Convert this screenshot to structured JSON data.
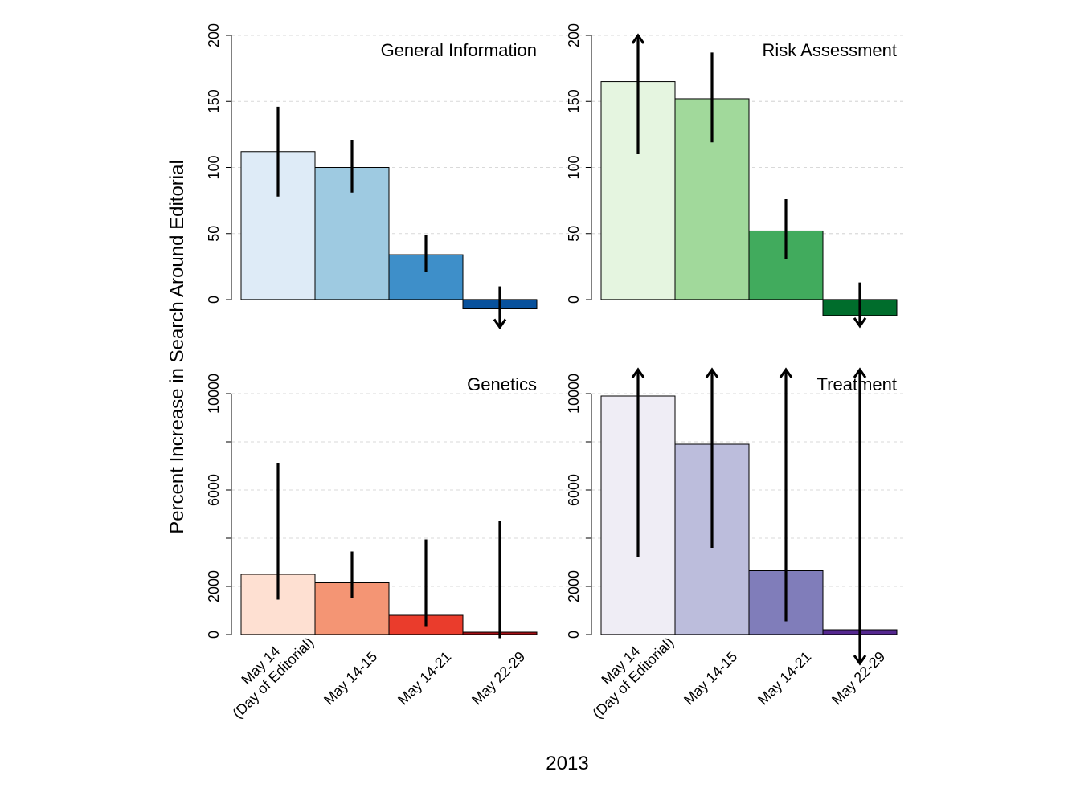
{
  "figure": {
    "ylabel": "Percent Increase in Search Around Editorial",
    "xlabel": "2013",
    "categories": [
      [
        "May 14",
        "(Day of Editorial)"
      ],
      [
        "May 14-15"
      ],
      [
        "May 14-21"
      ],
      [
        "May 22-29"
      ]
    ]
  },
  "chart_data": [
    {
      "type": "bar",
      "title": "General Information",
      "categories": [
        "May 14 (Day of Editorial)",
        "May 14-15",
        "May 14-21",
        "May 22-29"
      ],
      "values": [
        112,
        100,
        34,
        -7
      ],
      "error_low": [
        78,
        81,
        21,
        -21
      ],
      "error_high": [
        146,
        121,
        49,
        10
      ],
      "arrow_top": [
        false,
        false,
        false,
        false
      ],
      "arrow_bottom": [
        false,
        false,
        false,
        true
      ],
      "colors": [
        "#deebf7",
        "#9ecae1",
        "#3e8fc9",
        "#08519c"
      ],
      "ylim": [
        -20,
        200
      ],
      "yticks": [
        0,
        50,
        100,
        150,
        200
      ],
      "ytick_labels": [
        "0",
        "50",
        "100",
        "150",
        "200"
      ],
      "grid": true
    },
    {
      "type": "bar",
      "title": "Risk Assessment",
      "categories": [
        "May 14 (Day of Editorial)",
        "May 14-15",
        "May 14-21",
        "May 22-29"
      ],
      "values": [
        165,
        152,
        52,
        -12
      ],
      "error_low": [
        110,
        119,
        31,
        -20
      ],
      "error_high": [
        200,
        187,
        76,
        13
      ],
      "arrow_top": [
        true,
        false,
        false,
        false
      ],
      "arrow_bottom": [
        false,
        false,
        false,
        true
      ],
      "colors": [
        "#e5f5e0",
        "#a1d99b",
        "#41ab5d",
        "#006d2c"
      ],
      "ylim": [
        -20,
        200
      ],
      "yticks": [
        0,
        50,
        100,
        150,
        200
      ],
      "ytick_labels": [
        "0",
        "50",
        "100",
        "150",
        "200"
      ],
      "grid": true
    },
    {
      "type": "bar",
      "title": "Genetics",
      "categories": [
        "May 14 (Day of Editorial)",
        "May 14-15",
        "May 14-21",
        "May 22-29"
      ],
      "values": [
        2500,
        2150,
        800,
        100
      ],
      "error_low": [
        1450,
        1500,
        350,
        -150
      ],
      "error_high": [
        7100,
        3450,
        3950,
        4700
      ],
      "arrow_top": [
        false,
        false,
        false,
        false
      ],
      "arrow_bottom": [
        false,
        false,
        false,
        false
      ],
      "colors": [
        "#fee0d2",
        "#f49574",
        "#ea3c2c",
        "#a50f15"
      ],
      "ylim": [
        -200,
        11000
      ],
      "yticks": [
        0,
        2000,
        6000,
        10000
      ],
      "ytick_labels": [
        "0",
        "2000",
        "6000",
        "10000"
      ],
      "grid_values": [
        2000,
        4000,
        6000,
        8000,
        10000
      ],
      "minor_ticks": [
        4000,
        8000
      ],
      "grid": true
    },
    {
      "type": "bar",
      "title": "Treatment",
      "categories": [
        "May 14 (Day of Editorial)",
        "May 14-15",
        "May 14-21",
        "May 22-29"
      ],
      "values": [
        9900,
        7900,
        2650,
        200
      ],
      "error_low": [
        3200,
        3600,
        550,
        -1200
      ],
      "error_high": [
        11000,
        11000,
        11000,
        11000
      ],
      "arrow_top": [
        true,
        true,
        true,
        true
      ],
      "arrow_bottom": [
        false,
        false,
        false,
        true
      ],
      "colors": [
        "#efedf5",
        "#bcbddc",
        "#807dba",
        "#54278f"
      ],
      "ylim": [
        -200,
        11000
      ],
      "yticks": [
        0,
        2000,
        6000,
        10000
      ],
      "ytick_labels": [
        "0",
        "2000",
        "6000",
        "10000"
      ],
      "grid_values": [
        2000,
        4000,
        6000,
        8000,
        10000
      ],
      "minor_ticks": [
        4000,
        8000
      ],
      "grid": true
    }
  ]
}
